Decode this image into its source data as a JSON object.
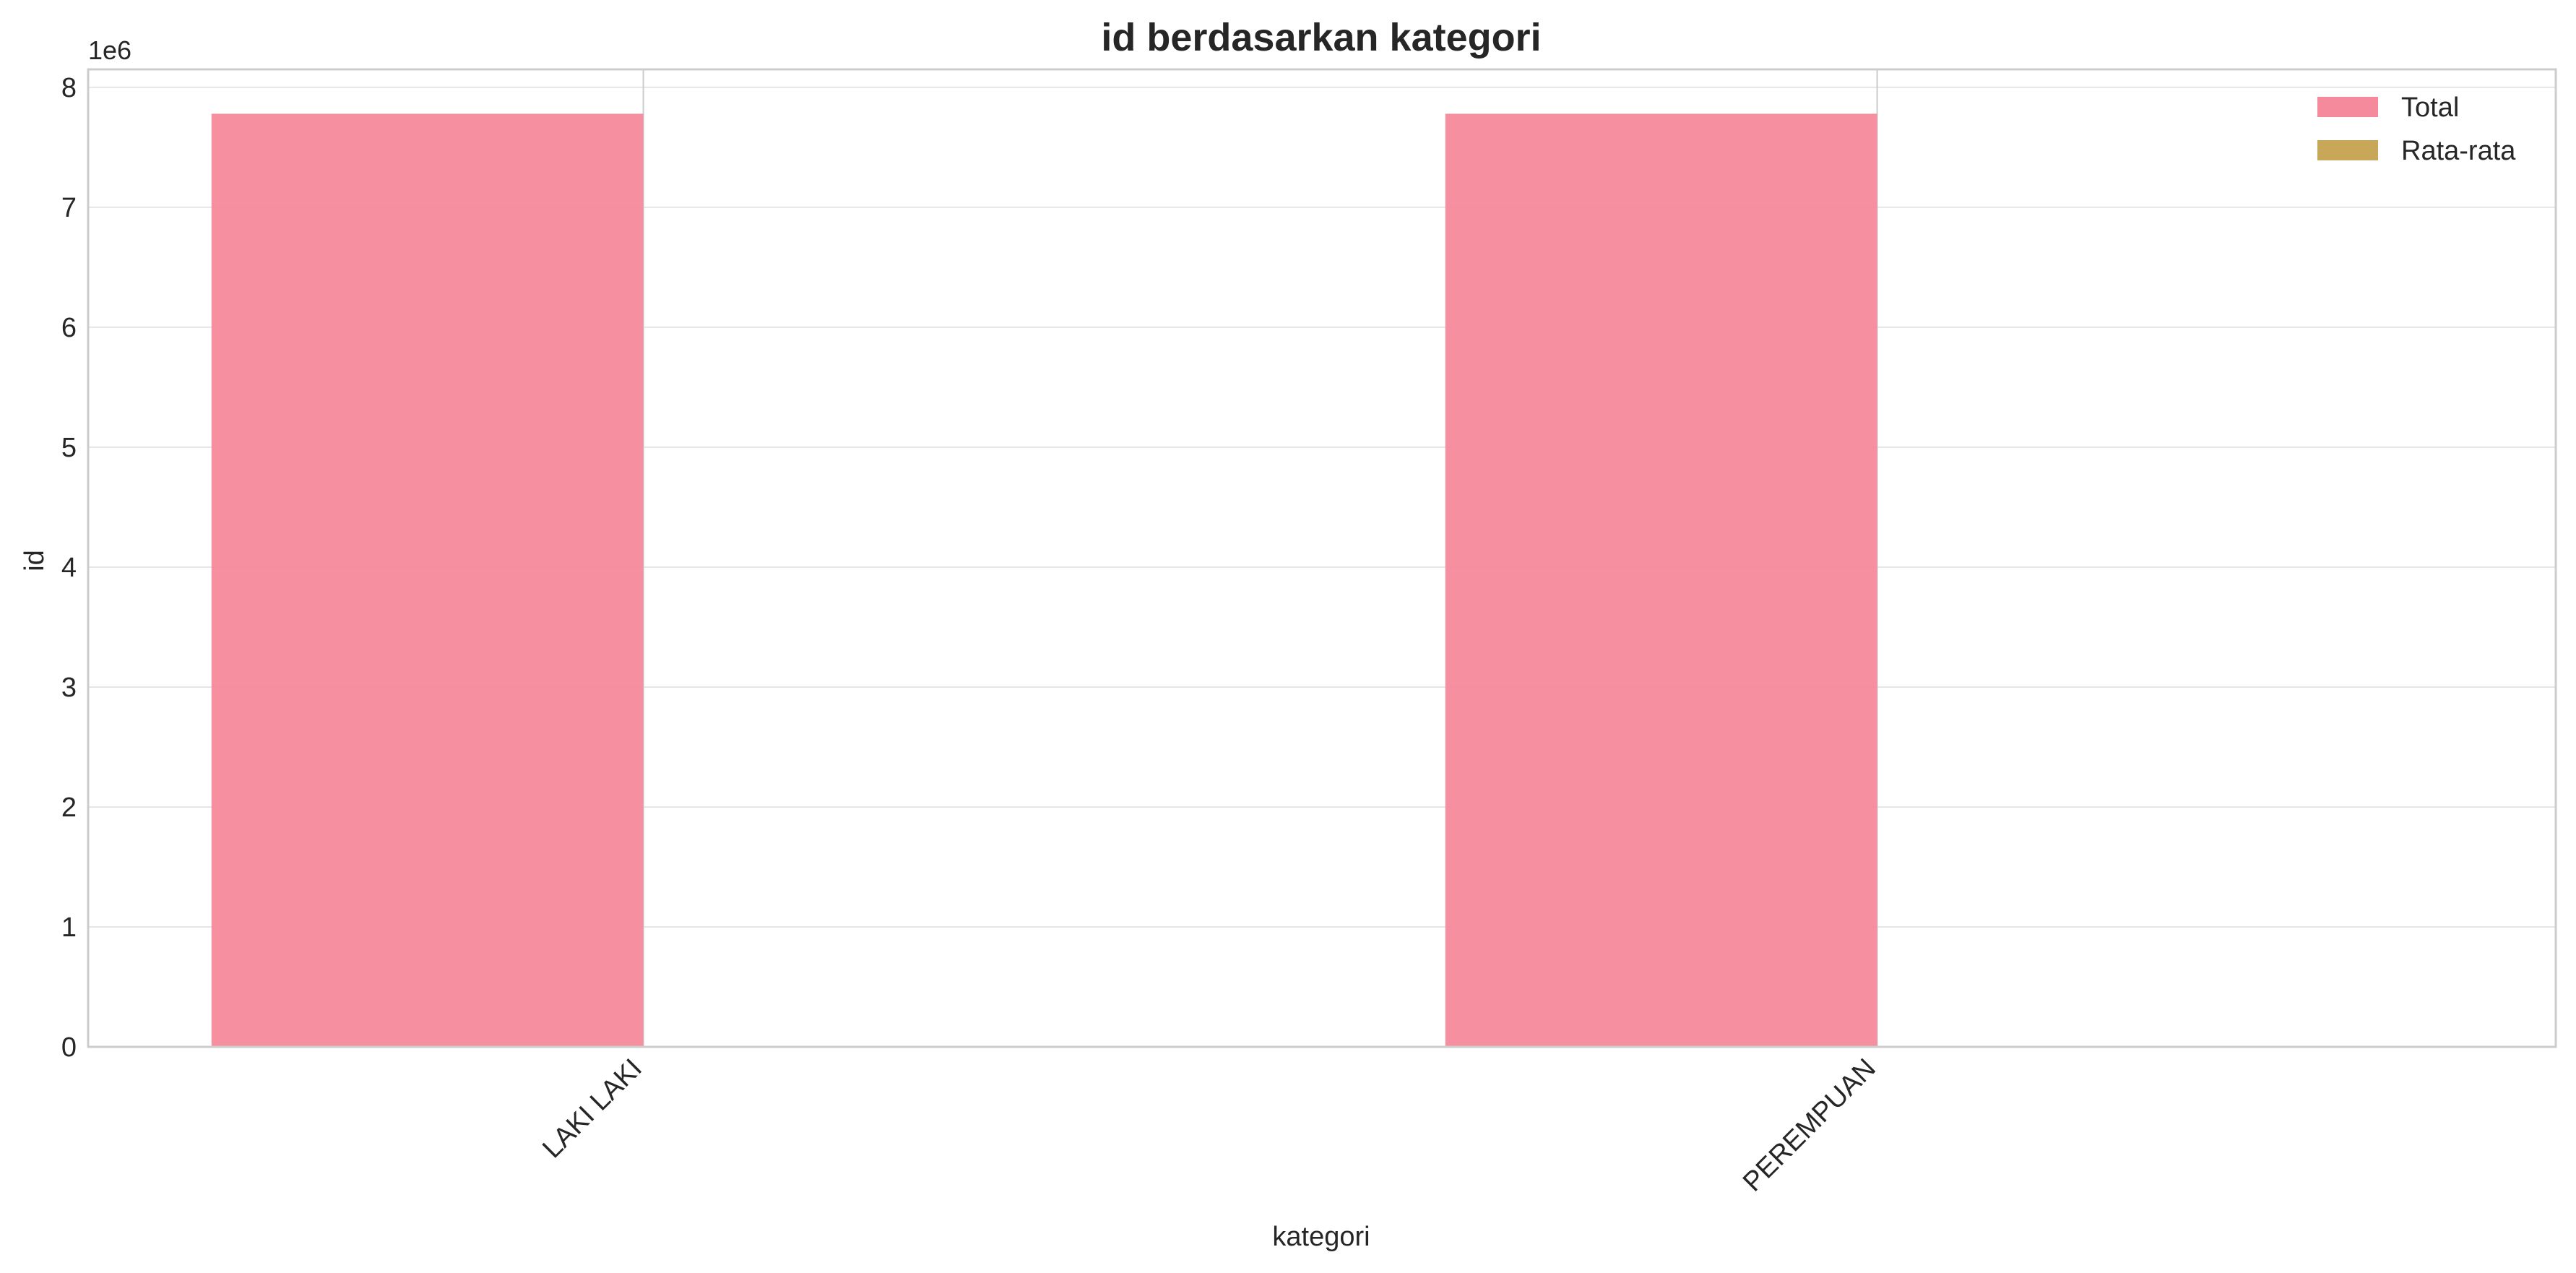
{
  "chart_data": {
    "type": "bar",
    "title": "id berdasarkan kategori",
    "xlabel": "kategori",
    "ylabel": "id",
    "y_offset_label": "1e6",
    "y_scale_factor": 1000000,
    "categories": [
      "LAKI LAKI",
      "PEREMPUAN"
    ],
    "series": [
      {
        "name": "Total",
        "color": "#f58a9c",
        "values": [
          7780000,
          7780000
        ]
      },
      {
        "name": "Rata-rata",
        "color": "#c9a759",
        "values": [
          0,
          0
        ]
      }
    ],
    "ylim": [
      0,
      8150000
    ],
    "yticks": [
      0,
      1000000,
      2000000,
      3000000,
      4000000,
      5000000,
      6000000,
      7000000,
      8000000
    ],
    "ytick_labels": [
      "0",
      "1",
      "2",
      "3",
      "4",
      "5",
      "6",
      "7",
      "8"
    ],
    "grid": true,
    "legend_position": "top-right",
    "colors": {
      "grid": "#e6e6e6",
      "axes_edge": "#cccccc",
      "text": "#262626"
    }
  }
}
